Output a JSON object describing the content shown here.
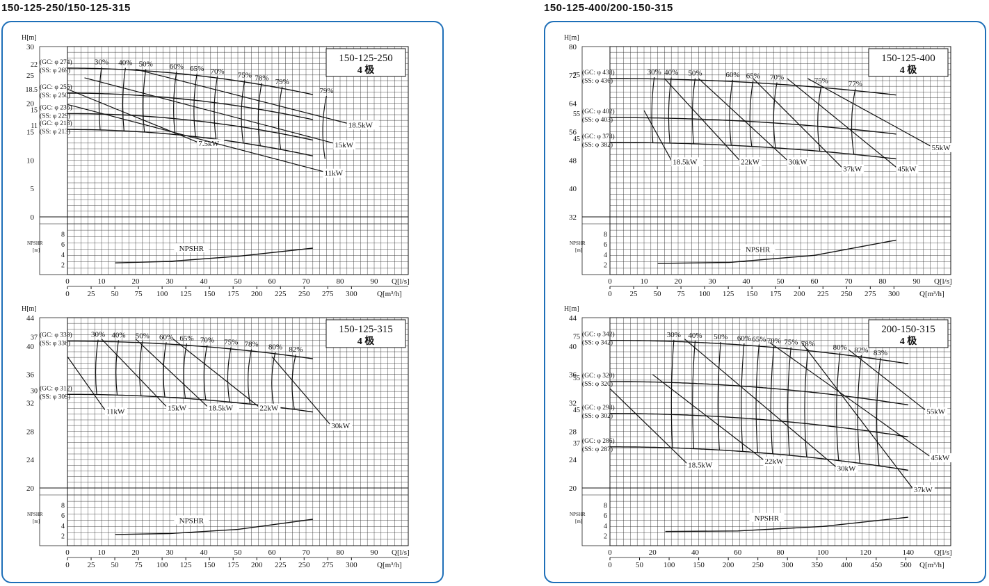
{
  "headers": {
    "left": "150-125-250/150-125-315",
    "right": "150-125-400/200-150-315"
  },
  "chart_data": [
    {
      "type": "line",
      "model": "150-125-250",
      "poles": "4 极",
      "ylabel": "H[m]",
      "yticks": [
        0,
        5,
        10,
        15,
        20,
        25,
        30
      ],
      "ylim": [
        0,
        30
      ],
      "xlabel": "Q[l/s]",
      "xticks": [
        0,
        10,
        20,
        30,
        40,
        50,
        60,
        70,
        80,
        90
      ],
      "xlim": [
        0,
        100
      ],
      "x2label": "Q[m³/h]",
      "x2ticks": [
        0,
        25,
        50,
        75,
        100,
        125,
        150,
        175,
        200,
        225,
        250,
        275,
        300
      ],
      "npsh_label": "NPSHR",
      "npsh_unit": "[m]",
      "npsh_ticks": [
        2,
        4,
        6,
        8
      ],
      "npsh_curve_label": "NPSHR",
      "npsh": [
        [
          14,
          2.3
        ],
        [
          30,
          2.6
        ],
        [
          50,
          3.6
        ],
        [
          72,
          5.2
        ]
      ],
      "impellers": [
        {
          "size": "22",
          "gc": "(GC: φ 274)",
          "ss": "(SS: φ 269)",
          "h0": 26.2,
          "k": 0.0015,
          "qmax": 72
        },
        {
          "size": "18.5",
          "gc": "(GC: φ 255)",
          "ss": "(SS: φ 250)",
          "h0": 21.8,
          "k": 0.0015,
          "qmax": 72
        },
        {
          "size": "15",
          "gc": "(GC: φ 236)",
          "ss": "(SS: φ 229)",
          "h0": 18.2,
          "k": 0.0015,
          "qmax": 72
        },
        {
          "size": "11",
          "gc": "(GC: φ 218)",
          "ss": "(SS: φ 213)",
          "h0": 15.4,
          "k": 0.0015,
          "qmax": 72
        }
      ],
      "eff": [
        "30%",
        "40%",
        "50%",
        "60%",
        "65%",
        "70%",
        "75%",
        "78%",
        "79%",
        "79%"
      ],
      "effq": [
        10,
        17,
        23,
        32,
        38,
        44,
        52,
        57,
        63,
        76
      ],
      "power": [
        {
          "label": "7.5kW",
          "q1": 0,
          "h1": 22.5,
          "q2": 38,
          "h2": 13.2
        },
        {
          "label": "11kW",
          "q1": 0,
          "h1": 19.8,
          "q2": 75,
          "h2": 8.0
        },
        {
          "label": "15kW",
          "q1": 5,
          "h1": 24.5,
          "q2": 78,
          "h2": 13.0
        },
        {
          "label": "18.5kW",
          "q1": 20,
          "h1": 26,
          "q2": 82,
          "h2": 16.5
        }
      ]
    },
    {
      "type": "line",
      "model": "150-125-400",
      "poles": "4 极",
      "ylabel": "H[m]",
      "yticks": [
        32,
        40,
        48,
        56,
        64,
        72,
        80
      ],
      "ylim": [
        32,
        80
      ],
      "xlabel": "Q[l/s]",
      "xticks": [
        0,
        10,
        20,
        30,
        40,
        50,
        60,
        70,
        80,
        90
      ],
      "xlim": [
        0,
        100
      ],
      "x2label": "Q[m³/h]",
      "x2ticks": [
        0,
        25,
        50,
        75,
        100,
        125,
        150,
        175,
        200,
        225,
        250,
        275,
        300
      ],
      "npsh_label": "NPSHR",
      "npsh_unit": "[m]",
      "npsh_ticks": [
        2,
        4,
        6,
        8
      ],
      "npsh_curve_label": "NPSHR",
      "npsh": [
        [
          14,
          2.2
        ],
        [
          35,
          2.4
        ],
        [
          60,
          3.8
        ],
        [
          84,
          6.8
        ]
      ],
      "impellers": [
        {
          "size": "75",
          "gc": "(GC: φ 438)",
          "ss": "(SS: φ 436)",
          "h0": 71,
          "k": 0.0011,
          "qmax": 84
        },
        {
          "size": "55",
          "gc": "(GC: φ 402)",
          "ss": "(SS: φ 403)",
          "h0": 60,
          "k": 0.0011,
          "qmax": 84
        },
        {
          "size": "45",
          "gc": "(GC: φ 378)",
          "ss": "(SS: φ 382)",
          "h0": 53,
          "k": 0.0011,
          "qmax": 84
        }
      ],
      "eff": [
        "30%",
        "40%",
        "50%",
        "60%",
        "65%",
        "70%",
        "75%",
        "77%"
      ],
      "effq": [
        13,
        18,
        25,
        36,
        42,
        49,
        62,
        72
      ],
      "power": [
        {
          "label": "18.5kW",
          "q1": 10,
          "h1": 62,
          "q2": 18,
          "h2": 48
        },
        {
          "label": "22kW",
          "q1": 16,
          "h1": 71,
          "q2": 38,
          "h2": 48
        },
        {
          "label": "30kW",
          "q1": 26,
          "h1": 71,
          "q2": 52,
          "h2": 48
        },
        {
          "label": "37kW",
          "q1": 42,
          "h1": 71,
          "q2": 68,
          "h2": 46
        },
        {
          "label": "45kW",
          "q1": 52,
          "h1": 71,
          "q2": 84,
          "h2": 46
        },
        {
          "label": "55kW",
          "q1": 58,
          "h1": 71,
          "q2": 94,
          "h2": 52
        }
      ]
    },
    {
      "type": "line",
      "model": "150-125-315",
      "poles": "4 极",
      "ylabel": "H[m]",
      "yticks": [
        20,
        24,
        28,
        32,
        36,
        40,
        44
      ],
      "ylim": [
        20,
        44
      ],
      "xlabel": "Q[l/s]",
      "xticks": [
        0,
        10,
        20,
        30,
        40,
        50,
        60,
        70,
        80,
        90
      ],
      "xlim": [
        0,
        100
      ],
      "x2label": "Q[m³/h]",
      "x2ticks": [
        0,
        25,
        50,
        75,
        100,
        125,
        150,
        175,
        200,
        225,
        250,
        275,
        300
      ],
      "npsh_label": "NPSHR",
      "npsh_unit": "[m]",
      "npsh_ticks": [
        2,
        4,
        6,
        8
      ],
      "npsh_curve_label": "NPSHR",
      "npsh": [
        [
          14,
          2.2
        ],
        [
          30,
          2.4
        ],
        [
          50,
          3.2
        ],
        [
          72,
          5.2
        ]
      ],
      "impellers": [
        {
          "size": "37",
          "gc": "(GC: φ 338)",
          "ss": "(SS: φ 336)",
          "h0": 40.7,
          "k": 0.0008,
          "qmax": 72
        },
        {
          "size": "30",
          "gc": "(GC: φ 312)",
          "ss": "(SS: φ 309)",
          "h0": 33.2,
          "k": 0.0008,
          "qmax": 72
        }
      ],
      "eff": [
        "30%",
        "40%",
        "50%",
        "60%",
        "65%",
        "70%",
        "75%",
        "78%",
        "80%",
        "82%"
      ],
      "effq": [
        9,
        15,
        22,
        29,
        35,
        41,
        48,
        54,
        61,
        67
      ],
      "power": [
        {
          "label": "11kW",
          "q1": 0,
          "h1": 38.5,
          "q2": 11,
          "h2": 31
        },
        {
          "label": "15kW",
          "q1": 10,
          "h1": 41,
          "q2": 29,
          "h2": 31.5
        },
        {
          "label": "18.5kW",
          "q1": 20,
          "h1": 41,
          "q2": 41,
          "h2": 31.5
        },
        {
          "label": "22kW",
          "q1": 31,
          "h1": 41,
          "q2": 56,
          "h2": 31.5
        },
        {
          "label": "30kW",
          "q1": 60,
          "h1": 38.5,
          "q2": 77,
          "h2": 29
        }
      ]
    },
    {
      "type": "line",
      "model": "200-150-315",
      "poles": "4 极",
      "ylabel": "H[m]",
      "yticks": [
        20,
        24,
        28,
        32,
        36,
        40,
        44
      ],
      "ylim": [
        20,
        44
      ],
      "xlabel": "Q[l/s]",
      "xticks": [
        0,
        20,
        40,
        60,
        80,
        100,
        120,
        140
      ],
      "xlim": [
        0,
        160
      ],
      "x2label": "Q[m³/h]",
      "x2ticks": [
        0,
        50,
        100,
        150,
        200,
        250,
        300,
        350,
        400,
        450,
        500
      ],
      "npsh_label": "NPSHR",
      "npsh_unit": "[m]",
      "npsh_ticks": [
        2,
        4,
        6,
        8
      ],
      "npsh_curve_label": "NPSHR",
      "npsh": [
        [
          26,
          2.8
        ],
        [
          60,
          2.9
        ],
        [
          100,
          3.8
        ],
        [
          140,
          5.6
        ]
      ],
      "impellers": [
        {
          "size": "75",
          "gc": "(GC: φ 342)",
          "ss": "(SS: φ 342)",
          "h0": 40.8,
          "k": 0.00028,
          "qmax": 140
        },
        {
          "size": "55",
          "gc": "(GC: φ 320)",
          "ss": "(SS: φ 320)",
          "h0": 35,
          "k": 0.00028,
          "qmax": 140
        },
        {
          "size": "45",
          "gc": "(GC: φ 298)",
          "ss": "(SS: φ 302)",
          "h0": 30.5,
          "k": 0.00028,
          "qmax": 140
        },
        {
          "size": "37",
          "gc": "(GC: φ 286)",
          "ss": "(SS: φ 287)",
          "h0": 25.8,
          "k": 0.00028,
          "qmax": 140
        }
      ],
      "eff": [
        "30%",
        "40%",
        "50%",
        "60%",
        "65%",
        "70%",
        "75%",
        "78%",
        "80%",
        "82%",
        "83%"
      ],
      "effq": [
        30,
        40,
        52,
        63,
        70,
        77,
        85,
        93,
        108,
        118,
        127
      ],
      "power": [
        {
          "label": "18.5kW",
          "q1": 0,
          "h1": 34,
          "q2": 36,
          "h2": 23.5
        },
        {
          "label": "22kW",
          "q1": 20,
          "h1": 36,
          "q2": 72,
          "h2": 24
        },
        {
          "label": "30kW",
          "q1": 35,
          "h1": 41,
          "q2": 106,
          "h2": 23
        },
        {
          "label": "37kW",
          "q1": 90,
          "h1": 40.5,
          "q2": 142,
          "h2": 20
        },
        {
          "label": "45kW",
          "q1": 75,
          "h1": 40.5,
          "q2": 150,
          "h2": 24.5
        },
        {
          "label": "55kW",
          "q1": 112,
          "h1": 39.5,
          "q2": 148,
          "h2": 31
        }
      ]
    }
  ]
}
